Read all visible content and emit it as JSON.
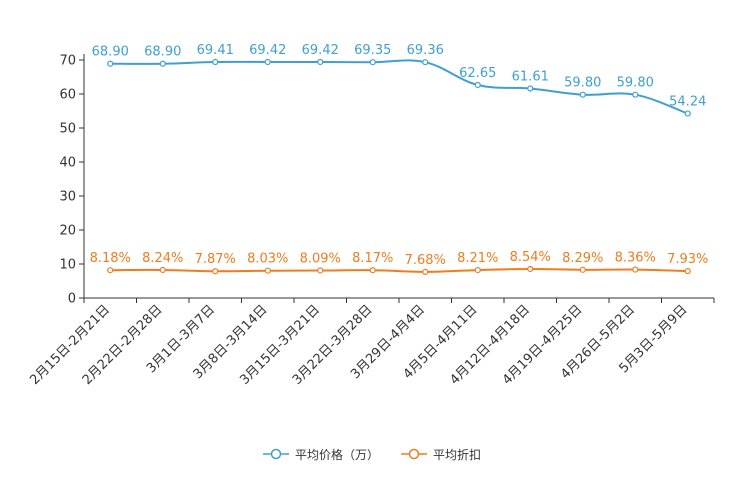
{
  "chart_data": {
    "type": "line",
    "title": "",
    "xlabel": "",
    "ylabel": "",
    "ylim": [
      0,
      70
    ],
    "yticks": [
      0,
      10,
      20,
      30,
      40,
      50,
      60,
      70
    ],
    "grid": false,
    "legend_position": "bottom",
    "categories": [
      "2月15日-2月21日",
      "2月22日-2月28日",
      "3月1日-3月7日",
      "3月8日-3月14日",
      "3月15日-3月21日",
      "3月22日-3月28日",
      "3月29日-4月4日",
      "4月5日-4月11日",
      "4月12日-4月18日",
      "4月19日-4月25日",
      "4月26日-5月2日",
      "5月3日-5月9日"
    ],
    "series": [
      {
        "name": "平均价格（万）",
        "color": "#3fa0d0",
        "values": [
          68.9,
          68.9,
          69.41,
          69.42,
          69.42,
          69.35,
          69.36,
          62.65,
          61.61,
          59.8,
          59.8,
          54.24
        ],
        "labels": [
          "68.90",
          "68.90",
          "69.41",
          "69.42",
          "69.42",
          "69.35",
          "69.36",
          "62.65",
          "61.61",
          "59.80",
          "59.80",
          "54.24"
        ]
      },
      {
        "name": "平均折扣",
        "color": "#f07c1e",
        "values": [
          8.18,
          8.24,
          7.87,
          8.03,
          8.09,
          8.17,
          7.68,
          8.21,
          8.54,
          8.29,
          8.36,
          7.93
        ],
        "labels": [
          "8.18%",
          "8.24%",
          "7.87%",
          "8.03%",
          "8.09%",
          "8.17%",
          "7.68%",
          "8.21%",
          "8.54%",
          "8.29%",
          "8.36%",
          "7.93%"
        ]
      }
    ]
  }
}
